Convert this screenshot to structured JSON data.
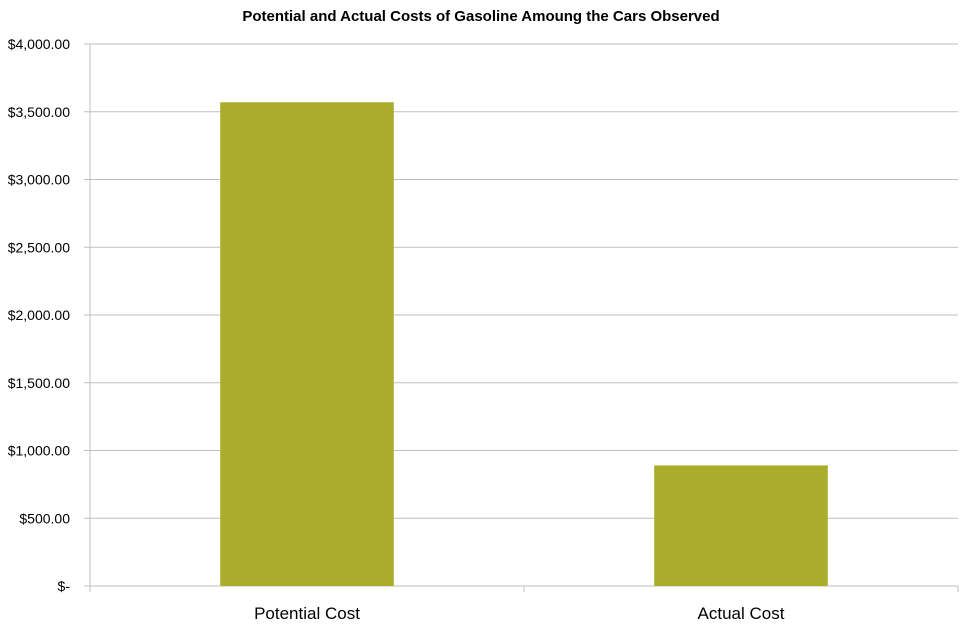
{
  "chart_data": {
    "type": "bar",
    "title": "Potential and Actual Costs of Gasoline Amoung the Cars Observed",
    "xlabel": "",
    "ylabel": "",
    "categories": [
      "Potential Cost",
      "Actual Cost"
    ],
    "values": [
      3570,
      890
    ],
    "ylim": [
      0,
      4000
    ],
    "y_ticks": [
      0,
      500,
      1000,
      1500,
      2000,
      2500,
      3000,
      3500,
      4000
    ],
    "y_tick_labels": [
      "$-",
      "$500.00",
      "$1,000.00",
      "$1,500.00",
      "$2,000.00",
      "$2,500.00",
      "$3,000.00",
      "$3,500.00",
      "$4,000.00"
    ],
    "grid": true,
    "legend": "none",
    "bar_color": "#aaac2b",
    "grid_color": "#bfbfbf"
  }
}
